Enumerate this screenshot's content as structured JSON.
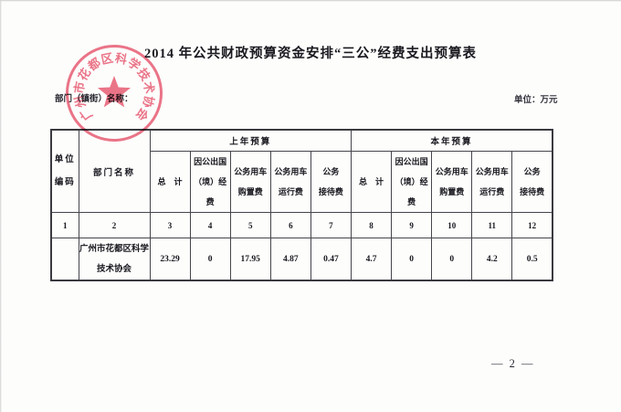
{
  "page": {
    "title": "2014 年公共财政预算资金安排“三公”经费支出预算表",
    "dept_label": "部门（镇街）名称：",
    "unit_label": "单位：万元",
    "page_number": "— 2 —"
  },
  "stamp": {
    "text": "广州市花都区科学技术协会",
    "color": "#e8566f"
  },
  "table": {
    "unit_code_header": {
      "line1": "单位",
      "line2": "编码"
    },
    "dept_name_header": "部门名称",
    "group_headers": {
      "last_year": "上年预算",
      "this_year": "本年预算"
    },
    "sub_headers": [
      {
        "line1": "总　计",
        "line2": ""
      },
      {
        "line1": "因公出国",
        "line2": "（境）经费"
      },
      {
        "line1": "公务用车",
        "line2": "购置费"
      },
      {
        "line1": "公务用车",
        "line2": "运行费"
      },
      {
        "line1": "公务",
        "line2": "接待费"
      },
      {
        "line1": "总　计",
        "line2": ""
      },
      {
        "line1": "因公出国",
        "line2": "（境）经费"
      },
      {
        "line1": "公务用车",
        "line2": "购置费"
      },
      {
        "line1": "公务用车",
        "line2": "运行费"
      },
      {
        "line1": "公务",
        "line2": "接待费"
      }
    ],
    "column_numbers": [
      "1",
      "2",
      "3",
      "4",
      "5",
      "6",
      "7",
      "8",
      "9",
      "10",
      "11",
      "12"
    ],
    "data_row": {
      "unit_code": "",
      "dept_name_line1": "广州市花都区科学",
      "dept_name_line2": "技术协会",
      "values": [
        "23.29",
        "0",
        "17.95",
        "4.87",
        "0.47",
        "4.7",
        "0",
        "0",
        "4.2",
        "0.5"
      ]
    }
  }
}
